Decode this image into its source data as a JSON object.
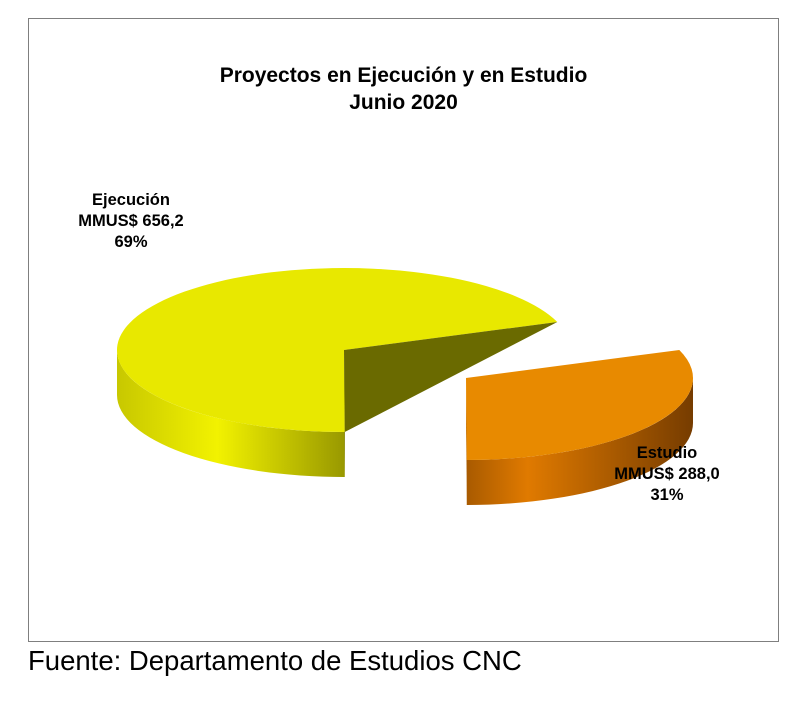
{
  "chart_data": {
    "type": "pie",
    "title": [
      "Proyectos en Ejecución y en Estudio",
      "Junio 2020"
    ],
    "unit": "MMUS$",
    "slices": [
      {
        "name": "Ejecución",
        "value_label": "MMUS$ 656,2",
        "value": 656.2,
        "percent_label": "69%",
        "percent": 69,
        "color": "#e8e800",
        "exploded": false
      },
      {
        "name": "Estudio",
        "value_label": "MMUS$ 288,0",
        "value": 288.0,
        "percent_label": "31%",
        "percent": 31,
        "color": "#e88a00",
        "exploded": true
      }
    ],
    "style": "3d-exploded"
  },
  "source": "Fuente: Departamento de Estudios CNC"
}
